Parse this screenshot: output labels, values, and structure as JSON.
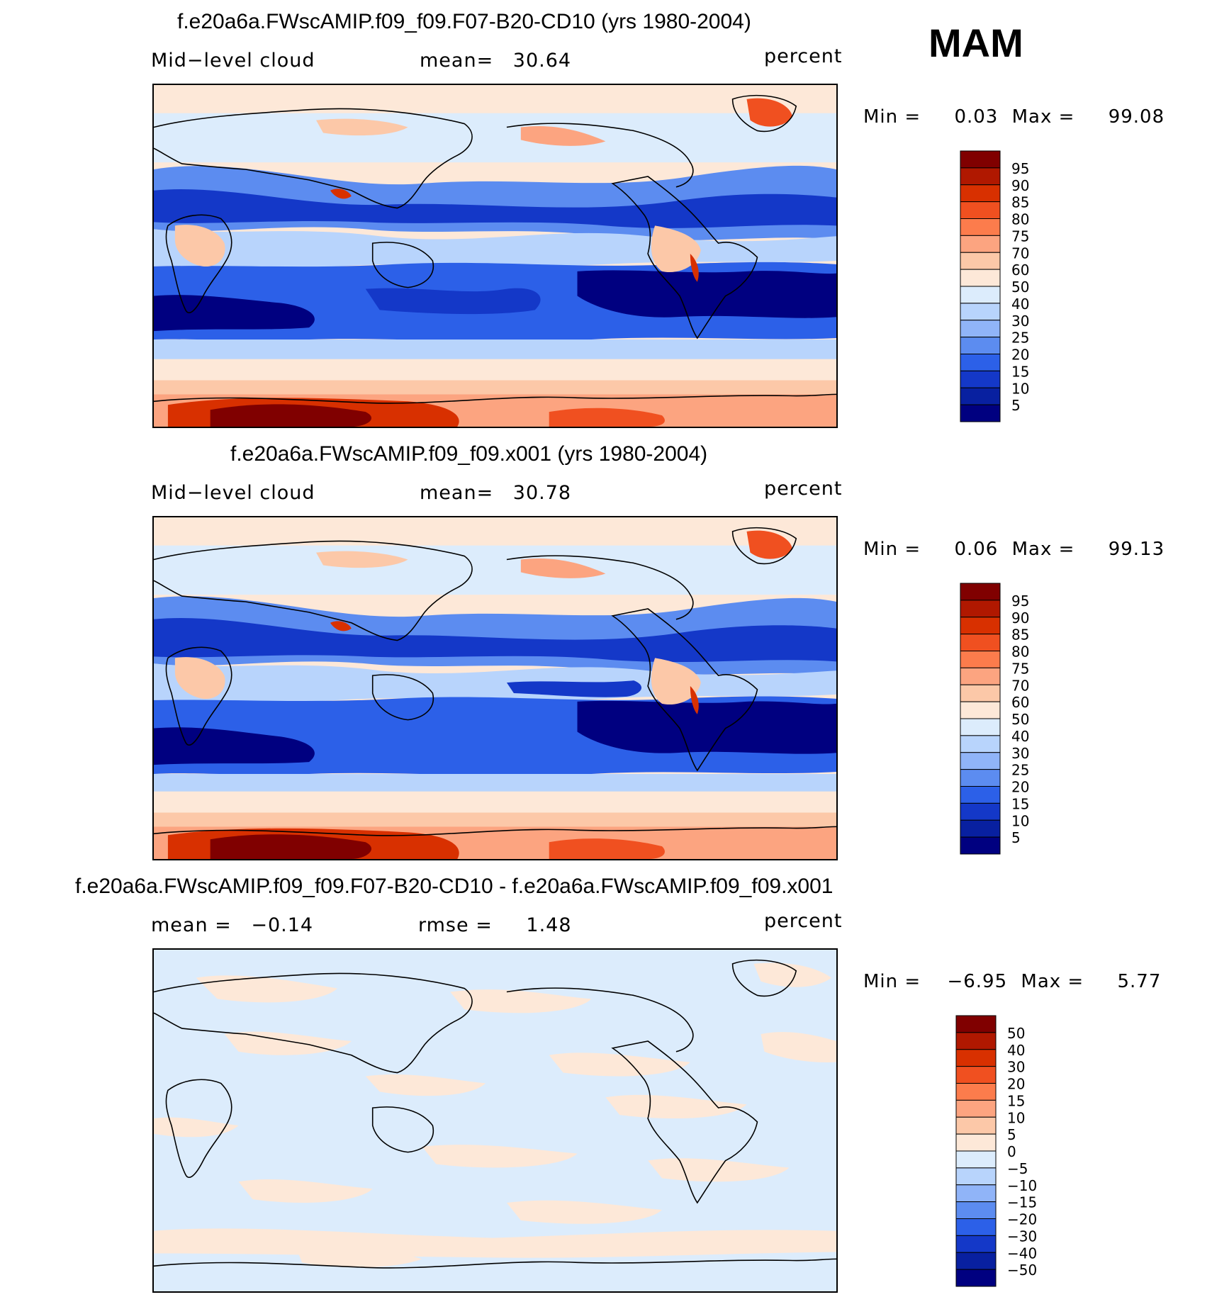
{
  "season": "MAM",
  "panels": [
    {
      "id": "model1",
      "title": "f.e20a6a.FWscAMIP.f09_f09.F07-B20-CD10 (yrs 1980-2004)",
      "left_label": "Mid−level cloud",
      "mid_label": "mean=",
      "mid_value": "30.64",
      "units": "percent",
      "min_label": "Min =",
      "min_value": "0.03",
      "max_label": "Max =",
      "max_value": "99.08",
      "colorbar": "abs"
    },
    {
      "id": "model2",
      "title": "f.e20a6a.FWscAMIP.f09_f09.x001 (yrs 1980-2004)",
      "left_label": "Mid−level cloud",
      "mid_label": "mean=",
      "mid_value": "30.78",
      "units": "percent",
      "min_label": "Min =",
      "min_value": "0.06",
      "max_label": "Max =",
      "max_value": "99.13",
      "colorbar": "abs"
    },
    {
      "id": "diff",
      "title": "f.e20a6a.FWscAMIP.f09_f09.F07-B20-CD10 - f.e20a6a.FWscAMIP.f09_f09.x001",
      "left_label": "mean =",
      "left_value": "−0.14",
      "mid_label": "rmse =",
      "mid_value": "1.48",
      "units": "percent",
      "min_label": "Min =",
      "min_value": "−6.95",
      "max_label": "Max =",
      "max_value": "5.77",
      "colorbar": "diff"
    }
  ],
  "chart_data": {
    "type": "heatmap",
    "variable": "Mid-level cloud",
    "season": "MAM",
    "units": "percent",
    "colorbar_abs": {
      "levels": [
        "95",
        "90",
        "85",
        "80",
        "75",
        "70",
        "60",
        "50",
        "40",
        "30",
        "25",
        "20",
        "15",
        "10",
        "5"
      ],
      "colors": [
        "#800000",
        "#b01800",
        "#d83000",
        "#f05020",
        "#fc7c4c",
        "#fca480",
        "#fcc8a8",
        "#fde8d8",
        "#dcecfc",
        "#b8d4fc",
        "#90b4f8",
        "#5c8cf0",
        "#2c60e8",
        "#1438c8",
        "#0820a0",
        "#000080"
      ]
    },
    "colorbar_diff": {
      "levels": [
        "50",
        "40",
        "30",
        "20",
        "15",
        "10",
        "5",
        "0",
        "−5",
        "−10",
        "−15",
        "−20",
        "−30",
        "−40",
        "−50"
      ],
      "colors": [
        "#800000",
        "#b01800",
        "#d83000",
        "#f05020",
        "#fc7c4c",
        "#fca480",
        "#fcc8a8",
        "#fde8d8",
        "#dcecfc",
        "#b8d4fc",
        "#90b4f8",
        "#5c8cf0",
        "#2c60e8",
        "#1438c8",
        "#0820a0",
        "#000080"
      ]
    }
  }
}
